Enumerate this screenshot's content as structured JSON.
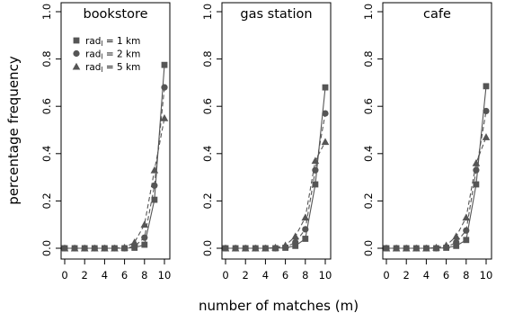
{
  "chart_data": [
    {
      "type": "line",
      "title": "bookstore",
      "xlabel": "number of matches (m)",
      "ylabel": "percentage frequency",
      "xlim": [
        0,
        10
      ],
      "ylim": [
        0,
        1
      ],
      "xticks": [
        "0",
        "2",
        "4",
        "6",
        "8",
        "10"
      ],
      "yticks": [
        "0.0",
        "0.2",
        "0.4",
        "0.6",
        "0.8",
        "1.0"
      ],
      "grid": false,
      "legend_position": "top-left",
      "x": [
        0,
        1,
        2,
        3,
        4,
        5,
        6,
        7,
        8,
        9,
        10
      ],
      "series": [
        {
          "name_parts": [
            "rad",
            "l",
            " = 1 km"
          ],
          "marker": "square",
          "line": "solid",
          "values": [
            0,
            0,
            0,
            0,
            0,
            0,
            0,
            0.002,
            0.015,
            0.205,
            0.775
          ]
        },
        {
          "name_parts": [
            "rad",
            "l",
            " = 2 km"
          ],
          "marker": "circle",
          "line": "dashed",
          "values": [
            0,
            0,
            0,
            0,
            0,
            0,
            0,
            0.008,
            0.045,
            0.265,
            0.68
          ]
        },
        {
          "name_parts": [
            "rad",
            "l",
            " = 5 km"
          ],
          "marker": "triangle",
          "line": "dashed",
          "values": [
            0,
            0,
            0,
            0,
            0,
            0,
            0.003,
            0.025,
            0.1,
            0.33,
            0.55
          ]
        }
      ]
    },
    {
      "type": "line",
      "title": "gas station",
      "xlim": [
        0,
        10
      ],
      "ylim": [
        0,
        1
      ],
      "xticks": [
        "0",
        "2",
        "4",
        "6",
        "8",
        "10"
      ],
      "yticks": [
        "0.0",
        "0.2",
        "0.4",
        "0.6",
        "0.8",
        "1.0"
      ],
      "grid": false,
      "x": [
        0,
        1,
        2,
        3,
        4,
        5,
        6,
        7,
        8,
        9,
        10
      ],
      "series": [
        {
          "marker": "square",
          "line": "solid",
          "values": [
            0,
            0,
            0,
            0,
            0,
            0,
            0.002,
            0.01,
            0.04,
            0.27,
            0.68
          ]
        },
        {
          "marker": "circle",
          "line": "dashed",
          "values": [
            0,
            0,
            0,
            0,
            0,
            0,
            0.004,
            0.025,
            0.08,
            0.33,
            0.57
          ]
        },
        {
          "marker": "triangle",
          "line": "dashed",
          "values": [
            0,
            0,
            0,
            0,
            0,
            0.003,
            0.012,
            0.05,
            0.13,
            0.37,
            0.45
          ]
        }
      ]
    },
    {
      "type": "line",
      "title": "cafe",
      "xlim": [
        0,
        10
      ],
      "ylim": [
        0,
        1
      ],
      "xticks": [
        "0",
        "2",
        "4",
        "6",
        "8",
        "10"
      ],
      "yticks": [
        "0.0",
        "0.2",
        "0.4",
        "0.6",
        "0.8",
        "1.0"
      ],
      "grid": false,
      "x": [
        0,
        1,
        2,
        3,
        4,
        5,
        6,
        7,
        8,
        9,
        10
      ],
      "series": [
        {
          "marker": "square",
          "line": "solid",
          "values": [
            0,
            0,
            0,
            0,
            0,
            0,
            0.002,
            0.01,
            0.035,
            0.27,
            0.685
          ]
        },
        {
          "marker": "circle",
          "line": "dashed",
          "values": [
            0,
            0,
            0,
            0,
            0,
            0,
            0.004,
            0.025,
            0.075,
            0.33,
            0.58
          ]
        },
        {
          "marker": "triangle",
          "line": "dashed",
          "values": [
            0,
            0,
            0,
            0,
            0,
            0.003,
            0.012,
            0.05,
            0.13,
            0.36,
            0.47
          ]
        }
      ]
    }
  ],
  "colors": {
    "series": "#555555",
    "axes": "#000000",
    "background": "#ffffff"
  }
}
